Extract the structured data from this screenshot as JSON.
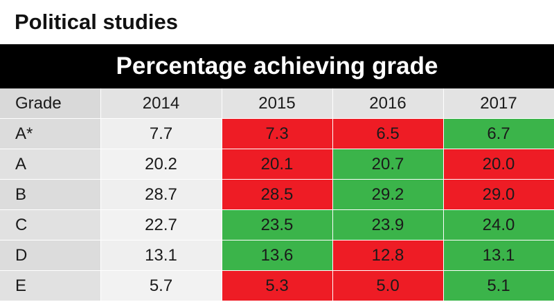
{
  "title": "Political studies",
  "banner": "Percentage achieving grade",
  "colors": {
    "increase": "#3bb44a",
    "decrease": "#ee1c25",
    "banner": "#000000"
  },
  "chart_data": {
    "type": "table",
    "columns": [
      "Grade",
      "2014",
      "2015",
      "2016",
      "2017"
    ],
    "rows": [
      {
        "grade": "A*",
        "values": [
          "7.7",
          "7.3",
          "6.5",
          "6.7"
        ],
        "trend": [
          "none",
          "down",
          "down",
          "up"
        ]
      },
      {
        "grade": "A",
        "values": [
          "20.2",
          "20.1",
          "20.7",
          "20.0"
        ],
        "trend": [
          "none",
          "down",
          "up",
          "down"
        ]
      },
      {
        "grade": "B",
        "values": [
          "28.7",
          "28.5",
          "29.2",
          "29.0"
        ],
        "trend": [
          "none",
          "down",
          "up",
          "down"
        ]
      },
      {
        "grade": "C",
        "values": [
          "22.7",
          "23.5",
          "23.9",
          "24.0"
        ],
        "trend": [
          "none",
          "up",
          "up",
          "up"
        ]
      },
      {
        "grade": "D",
        "values": [
          "13.1",
          "13.6",
          "12.8",
          "13.1"
        ],
        "trend": [
          "none",
          "up",
          "down",
          "up"
        ]
      },
      {
        "grade": "E",
        "values": [
          "5.7",
          "5.3",
          "5.0",
          "5.1"
        ],
        "trend": [
          "none",
          "down",
          "down",
          "up"
        ]
      }
    ]
  }
}
